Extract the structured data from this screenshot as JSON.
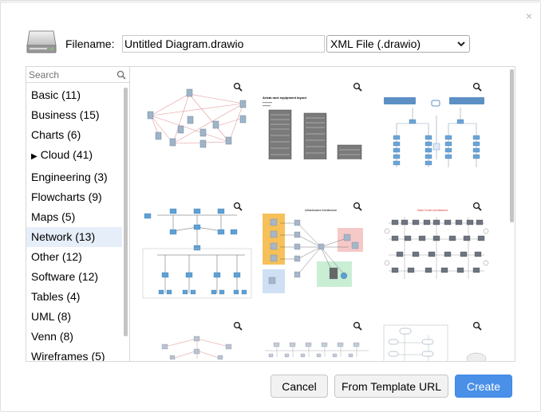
{
  "dialog": {
    "close_glyph": "×",
    "filename_label": "Filename:",
    "filename_value": "Untitled Diagram.drawio",
    "format_selected": "XML File (.drawio)",
    "icons": {
      "drive": "hard-drive-icon",
      "close": "close-icon",
      "search": "search-icon",
      "zoom": "zoom-icon",
      "chevron": "chevron-down-icon"
    }
  },
  "sidebar": {
    "search_placeholder": "Search",
    "categories": [
      {
        "label": "Basic (11)"
      },
      {
        "label": "Business (15)"
      },
      {
        "label": "Charts (6)"
      },
      {
        "label": "Cloud (41)",
        "expander": "▶"
      },
      {
        "label": "Engineering (3)"
      },
      {
        "label": "Flowcharts (9)"
      },
      {
        "label": "Maps (5)"
      },
      {
        "label": "Network (13)",
        "selected": true
      },
      {
        "label": "Other (12)"
      },
      {
        "label": "Software (12)"
      },
      {
        "label": "Tables (4)"
      },
      {
        "label": "UML (8)"
      },
      {
        "label": "Venn (8)"
      },
      {
        "label": "Wireframes (5)"
      }
    ]
  },
  "templates": {
    "thumb2_title": "Arista rack equipment layout",
    "thumb5_title": "Infrastructure Architecture",
    "thumb6_title": "Data Center Architecture"
  },
  "buttons": {
    "cancel": "Cancel",
    "from_url": "From Template URL",
    "create": "Create"
  },
  "colors": {
    "accent": "#4a90e8",
    "selected_bg": "#e6eef9",
    "border": "#d8d8d8"
  }
}
